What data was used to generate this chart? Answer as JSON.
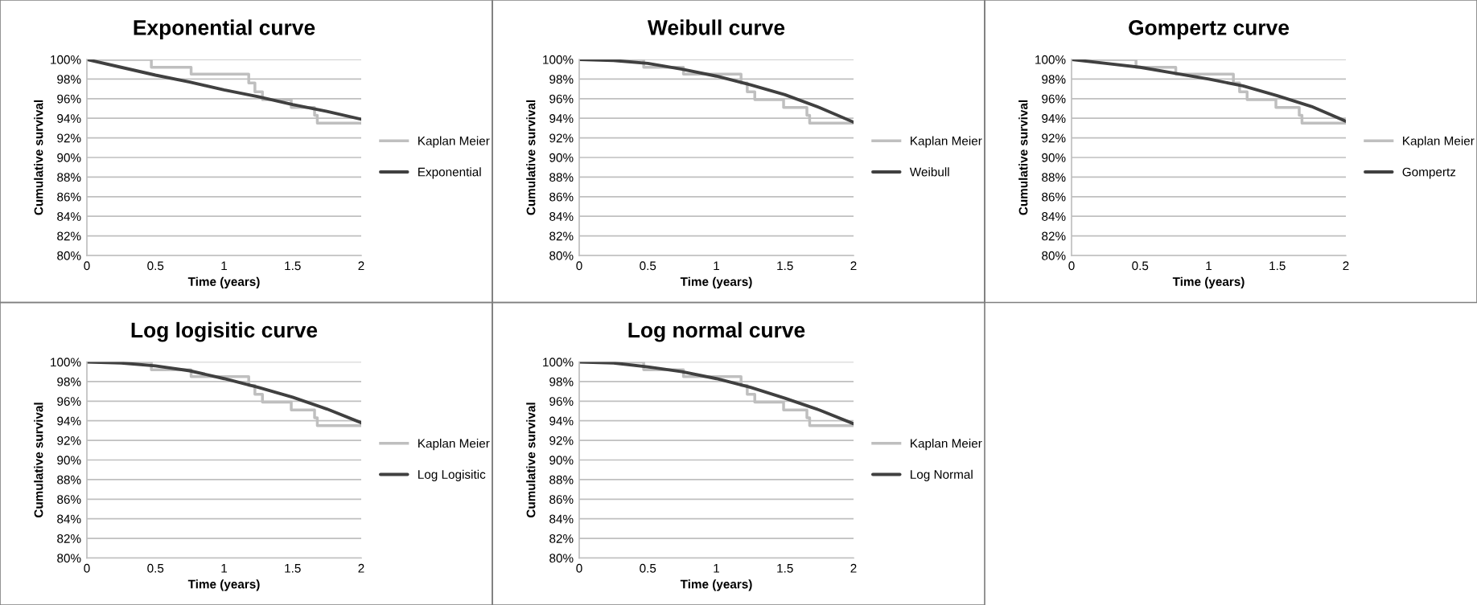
{
  "chart_data": [
    {
      "type": "line",
      "title": "Exponential curve",
      "xlabel": "Time (years)",
      "ylabel": "Cumulative survival",
      "xlim": [
        0,
        2
      ],
      "xticks": [
        0,
        0.5,
        1,
        1.5,
        2
      ],
      "ylim": [
        80,
        100
      ],
      "yticks": [
        {
          "value": 80,
          "label": "80%"
        },
        {
          "value": 82,
          "label": "82%"
        },
        {
          "value": 84,
          "label": "84%"
        },
        {
          "value": 86,
          "label": "86%"
        },
        {
          "value": 88,
          "label": "88%"
        },
        {
          "value": 90,
          "label": "90%"
        },
        {
          "value": 92,
          "label": "92%"
        },
        {
          "value": 94,
          "label": "94%"
        },
        {
          "value": 96,
          "label": "96%"
        },
        {
          "value": 98,
          "label": "98%"
        },
        {
          "value": 100,
          "label": "100%"
        }
      ],
      "grid": "y",
      "legend": "right",
      "series": [
        {
          "name": "Kaplan Meier",
          "type": "step",
          "color": "#bfbfbf",
          "x": [
            0,
            0.47,
            0.76,
            1.18,
            1.225,
            1.28,
            1.49,
            1.66,
            1.68,
            2
          ],
          "values": [
            100,
            99.2,
            98.5,
            97.6,
            96.7,
            95.9,
            95.1,
            94.3,
            93.5,
            93.5
          ]
        },
        {
          "name": "Exponential",
          "color": "#404040",
          "x": [
            0,
            0.25,
            0.5,
            0.75,
            1,
            1.25,
            1.5,
            1.75,
            2
          ],
          "values": [
            100,
            99.2,
            98.4,
            97.7,
            96.9,
            96.2,
            95.4,
            94.7,
            93.9
          ]
        }
      ]
    },
    {
      "type": "line",
      "title": "Weibull curve",
      "xlabel": "Time (years)",
      "ylabel": "Cumulative survival",
      "xlim": [
        0,
        2
      ],
      "xticks": [
        0,
        0.5,
        1,
        1.5,
        2
      ],
      "ylim": [
        80,
        100
      ],
      "yticks": [
        {
          "value": 80,
          "label": "80%"
        },
        {
          "value": 82,
          "label": "82%"
        },
        {
          "value": 84,
          "label": "84%"
        },
        {
          "value": 86,
          "label": "86%"
        },
        {
          "value": 88,
          "label": "88%"
        },
        {
          "value": 90,
          "label": "90%"
        },
        {
          "value": 92,
          "label": "92%"
        },
        {
          "value": 94,
          "label": "94%"
        },
        {
          "value": 96,
          "label": "96%"
        },
        {
          "value": 98,
          "label": "98%"
        },
        {
          "value": 100,
          "label": "100%"
        }
      ],
      "grid": "y",
      "legend": "right",
      "series": [
        {
          "name": "Kaplan Meier",
          "type": "step",
          "color": "#bfbfbf",
          "x": [
            0,
            0.47,
            0.76,
            1.18,
            1.225,
            1.28,
            1.49,
            1.66,
            1.68,
            2
          ],
          "values": [
            100,
            99.2,
            98.5,
            97.6,
            96.7,
            95.9,
            95.1,
            94.3,
            93.5,
            93.5
          ]
        },
        {
          "name": "Weibull",
          "color": "#404040",
          "x": [
            0,
            0.25,
            0.5,
            0.75,
            1,
            1.25,
            1.5,
            1.75,
            2
          ],
          "values": [
            100,
            99.9,
            99.6,
            99.0,
            98.3,
            97.4,
            96.4,
            95.1,
            93.6
          ]
        }
      ]
    },
    {
      "type": "line",
      "title": "Gompertz curve",
      "xlabel": "Time (years)",
      "ylabel": "Cumulative survival",
      "xlim": [
        0,
        2
      ],
      "xticks": [
        0,
        0.5,
        1,
        1.5,
        2
      ],
      "ylim": [
        80,
        100
      ],
      "yticks": [
        {
          "value": 80,
          "label": "80%"
        },
        {
          "value": 82,
          "label": "82%"
        },
        {
          "value": 84,
          "label": "84%"
        },
        {
          "value": 86,
          "label": "86%"
        },
        {
          "value": 88,
          "label": "88%"
        },
        {
          "value": 90,
          "label": "90%"
        },
        {
          "value": 92,
          "label": "92%"
        },
        {
          "value": 94,
          "label": "94%"
        },
        {
          "value": 96,
          "label": "96%"
        },
        {
          "value": 98,
          "label": "98%"
        },
        {
          "value": 100,
          "label": "100%"
        }
      ],
      "grid": "y",
      "legend": "right",
      "series": [
        {
          "name": "Kaplan Meier",
          "type": "step",
          "color": "#bfbfbf",
          "x": [
            0,
            0.47,
            0.76,
            1.18,
            1.225,
            1.28,
            1.49,
            1.66,
            1.68,
            2
          ],
          "values": [
            100,
            99.2,
            98.5,
            97.6,
            96.7,
            95.9,
            95.1,
            94.3,
            93.5,
            93.5
          ]
        },
        {
          "name": "Gompertz",
          "color": "#404040",
          "x": [
            0,
            0.25,
            0.5,
            0.75,
            1,
            1.25,
            1.5,
            1.75,
            2
          ],
          "values": [
            100,
            99.6,
            99.2,
            98.6,
            98.0,
            97.3,
            96.3,
            95.2,
            93.7
          ]
        }
      ]
    },
    {
      "type": "line",
      "title": "Log logisitic curve",
      "xlabel": "Time (years)",
      "ylabel": "Cumulative survival",
      "xlim": [
        0,
        2
      ],
      "xticks": [
        0,
        0.5,
        1,
        1.5,
        2
      ],
      "ylim": [
        80,
        100
      ],
      "yticks": [
        {
          "value": 80,
          "label": "80%"
        },
        {
          "value": 82,
          "label": "82%"
        },
        {
          "value": 84,
          "label": "84%"
        },
        {
          "value": 86,
          "label": "86%"
        },
        {
          "value": 88,
          "label": "88%"
        },
        {
          "value": 90,
          "label": "90%"
        },
        {
          "value": 92,
          "label": "92%"
        },
        {
          "value": 94,
          "label": "94%"
        },
        {
          "value": 96,
          "label": "96%"
        },
        {
          "value": 98,
          "label": "98%"
        },
        {
          "value": 100,
          "label": "100%"
        }
      ],
      "grid": "y",
      "legend": "right",
      "series": [
        {
          "name": "Kaplan Meier",
          "type": "step",
          "color": "#bfbfbf",
          "x": [
            0,
            0.47,
            0.76,
            1.18,
            1.225,
            1.28,
            1.49,
            1.66,
            1.68,
            2
          ],
          "values": [
            100,
            99.2,
            98.5,
            97.6,
            96.7,
            95.9,
            95.1,
            94.3,
            93.5,
            93.5
          ]
        },
        {
          "name": "Log Logisitic",
          "color": "#404040",
          "x": [
            0,
            0.25,
            0.5,
            0.75,
            1,
            1.25,
            1.5,
            1.75,
            2
          ],
          "values": [
            100,
            99.9,
            99.6,
            99.1,
            98.3,
            97.4,
            96.4,
            95.2,
            93.8
          ]
        }
      ]
    },
    {
      "type": "line",
      "title": "Log normal curve",
      "xlabel": "Time (years)",
      "ylabel": "Cumulative survival",
      "xlim": [
        0,
        2
      ],
      "xticks": [
        0,
        0.5,
        1,
        1.5,
        2
      ],
      "ylim": [
        80,
        100
      ],
      "yticks": [
        {
          "value": 80,
          "label": "80%"
        },
        {
          "value": 82,
          "label": "82%"
        },
        {
          "value": 84,
          "label": "84%"
        },
        {
          "value": 86,
          "label": "86%"
        },
        {
          "value": 88,
          "label": "88%"
        },
        {
          "value": 90,
          "label": "90%"
        },
        {
          "value": 92,
          "label": "92%"
        },
        {
          "value": 94,
          "label": "94%"
        },
        {
          "value": 96,
          "label": "96%"
        },
        {
          "value": 98,
          "label": "98%"
        },
        {
          "value": 100,
          "label": "100%"
        }
      ],
      "grid": "y",
      "legend": "right",
      "series": [
        {
          "name": "Kaplan Meier",
          "type": "step",
          "color": "#bfbfbf",
          "x": [
            0,
            0.47,
            0.76,
            1.18,
            1.225,
            1.28,
            1.49,
            1.66,
            1.68,
            2
          ],
          "values": [
            100,
            99.2,
            98.5,
            97.6,
            96.7,
            95.9,
            95.1,
            94.3,
            93.5,
            93.5
          ]
        },
        {
          "name": "Log Normal",
          "color": "#404040",
          "x": [
            0,
            0.25,
            0.5,
            0.75,
            1,
            1.25,
            1.5,
            1.75,
            2
          ],
          "values": [
            100,
            99.9,
            99.5,
            99.0,
            98.3,
            97.4,
            96.3,
            95.1,
            93.7
          ]
        }
      ]
    }
  ]
}
